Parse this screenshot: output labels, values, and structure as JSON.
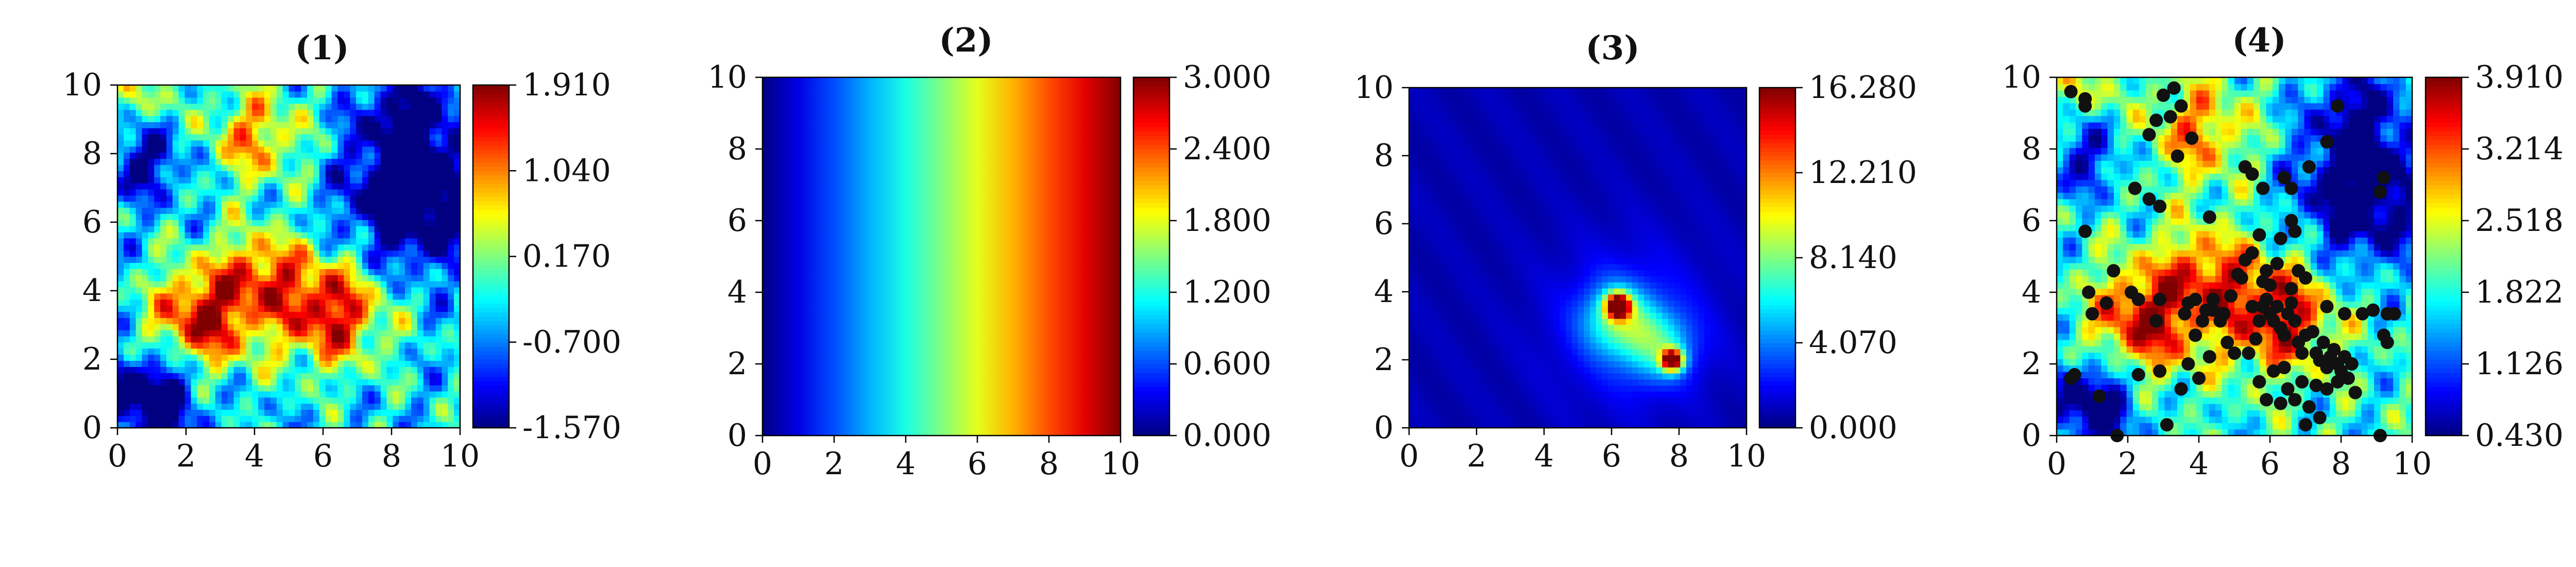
{
  "figure": {
    "panels": [
      {
        "title": "(1)"
      },
      {
        "title": "(2)"
      },
      {
        "title": "(3)"
      },
      {
        "title": "(4)"
      }
    ]
  },
  "chart_data": [
    {
      "type": "heatmap",
      "title": "(1)",
      "xlabel": "",
      "ylabel": "",
      "xlim": [
        0,
        10
      ],
      "ylim": [
        0,
        10
      ],
      "xticks": [
        "0",
        "2",
        "4",
        "6",
        "8",
        "10"
      ],
      "yticks": [
        "0",
        "2",
        "4",
        "6",
        "8",
        "10"
      ],
      "colormap": "jet",
      "colorbar": {
        "ticks": [
          "1.910",
          "1.040",
          "0.170",
          "-0.700",
          "-1.570"
        ],
        "min": -1.57,
        "max": 1.91
      },
      "field": "random Gaussian field with high values centered near (2.5, 3.2) and (6.2, 3.5), moderate ridge near (4, 8.5), low values near (1, 1) and (8.5, 6.5)"
    },
    {
      "type": "heatmap",
      "title": "(2)",
      "xlabel": "",
      "ylabel": "",
      "xlim": [
        0,
        10
      ],
      "ylim": [
        0,
        10
      ],
      "xticks": [
        "0",
        "2",
        "4",
        "6",
        "8",
        "10"
      ],
      "yticks": [
        "0",
        "2",
        "4",
        "6",
        "8",
        "10"
      ],
      "colormap": "jet",
      "colorbar": {
        "ticks": [
          "3.000",
          "2.400",
          "1.800",
          "1.200",
          "0.600",
          "0.000"
        ],
        "min": 0,
        "max": 3
      },
      "field": "linear gradient in x, value = 0.3 * x"
    },
    {
      "type": "heatmap",
      "title": "(3)",
      "xlabel": "",
      "ylabel": "",
      "xlim": [
        0,
        10
      ],
      "ylim": [
        0,
        10
      ],
      "xticks": [
        "0",
        "2",
        "4",
        "6",
        "8",
        "10"
      ],
      "yticks": [
        "0",
        "2",
        "4",
        "6",
        "8",
        "10"
      ],
      "colormap": "jet",
      "colorbar": {
        "ticks": [
          "16.280",
          "12.210",
          "8.140",
          "4.070",
          "0.000"
        ],
        "min": 0,
        "max": 16.28
      },
      "field": "near-zero background with peaks at (6.2, 3.6) and (7.8, 2.0)"
    },
    {
      "type": "heatmap",
      "title": "(4)",
      "xlabel": "",
      "ylabel": "",
      "xlim": [
        0,
        10
      ],
      "ylim": [
        0,
        10
      ],
      "xticks": [
        "0",
        "2",
        "4",
        "6",
        "8",
        "10"
      ],
      "yticks": [
        "0",
        "2",
        "4",
        "6",
        "8",
        "10"
      ],
      "colormap": "jet",
      "colorbar": {
        "ticks": [
          "3.910",
          "3.214",
          "2.518",
          "1.822",
          "1.126",
          "0.430"
        ],
        "min": 0.43,
        "max": 3.91
      },
      "field": "same random field as panel (1) shifted and overlaid with sampled points",
      "points": [
        [
          0.4,
          9.6
        ],
        [
          0.8,
          9.2
        ],
        [
          0.8,
          9.4
        ],
        [
          3.0,
          9.5
        ],
        [
          3.3,
          9.7
        ],
        [
          3.5,
          9.2
        ],
        [
          2.8,
          8.8
        ],
        [
          3.2,
          8.9
        ],
        [
          2.6,
          8.4
        ],
        [
          3.8,
          8.3
        ],
        [
          3.4,
          7.8
        ],
        [
          5.3,
          7.5
        ],
        [
          5.5,
          7.3
        ],
        [
          5.8,
          6.9
        ],
        [
          6.4,
          7.2
        ],
        [
          6.6,
          6.9
        ],
        [
          7.1,
          7.5
        ],
        [
          7.6,
          8.2
        ],
        [
          7.9,
          9.2
        ],
        [
          9.2,
          7.2
        ],
        [
          9.1,
          6.8
        ],
        [
          2.2,
          6.9
        ],
        [
          2.6,
          6.6
        ],
        [
          2.9,
          6.4
        ],
        [
          4.3,
          6.1
        ],
        [
          0.8,
          5.7
        ],
        [
          0.9,
          4.0
        ],
        [
          1.0,
          3.4
        ],
        [
          0.4,
          1.6
        ],
        [
          0.5,
          1.7
        ],
        [
          1.2,
          1.1
        ],
        [
          1.7,
          0.0
        ],
        [
          1.4,
          3.7
        ],
        [
          1.6,
          4.6
        ],
        [
          2.1,
          4.0
        ],
        [
          2.3,
          3.8
        ],
        [
          2.9,
          3.8
        ],
        [
          2.8,
          3.2
        ],
        [
          2.9,
          1.8
        ],
        [
          2.3,
          1.7
        ],
        [
          3.1,
          0.3
        ],
        [
          3.5,
          1.3
        ],
        [
          3.7,
          2.0
        ],
        [
          4.0,
          1.6
        ],
        [
          3.6,
          3.4
        ],
        [
          3.7,
          3.7
        ],
        [
          3.9,
          3.8
        ],
        [
          4.2,
          3.5
        ],
        [
          4.1,
          3.2
        ],
        [
          4.4,
          3.5
        ],
        [
          4.4,
          3.8
        ],
        [
          4.6,
          3.2
        ],
        [
          4.7,
          3.4
        ],
        [
          4.9,
          3.9
        ],
        [
          5.1,
          4.5
        ],
        [
          5.2,
          4.4
        ],
        [
          5.3,
          4.9
        ],
        [
          5.5,
          5.1
        ],
        [
          5.7,
          5.6
        ],
        [
          5.8,
          4.3
        ],
        [
          5.9,
          4.6
        ],
        [
          6.0,
          4.2
        ],
        [
          6.2,
          4.8
        ],
        [
          6.3,
          5.5
        ],
        [
          6.6,
          6.0
        ],
        [
          6.7,
          5.7
        ],
        [
          6.8,
          4.6
        ],
        [
          7.0,
          4.4
        ],
        [
          5.0,
          2.3
        ],
        [
          5.4,
          2.3
        ],
        [
          5.6,
          2.7
        ],
        [
          5.7,
          3.2
        ],
        [
          5.8,
          3.6
        ],
        [
          5.9,
          3.8
        ],
        [
          6.0,
          3.4
        ],
        [
          6.1,
          3.2
        ],
        [
          6.2,
          3.6
        ],
        [
          6.3,
          3.0
        ],
        [
          6.4,
          2.8
        ],
        [
          6.5,
          3.4
        ],
        [
          6.6,
          3.7
        ],
        [
          6.7,
          3.2
        ],
        [
          6.8,
          2.6
        ],
        [
          6.9,
          2.3
        ],
        [
          7.0,
          2.8
        ],
        [
          7.2,
          2.9
        ],
        [
          7.3,
          2.3
        ],
        [
          7.4,
          2.1
        ],
        [
          7.5,
          2.6
        ],
        [
          7.6,
          1.9
        ],
        [
          7.7,
          2.2
        ],
        [
          7.8,
          2.4
        ],
        [
          7.9,
          2.0
        ],
        [
          8.0,
          1.8
        ],
        [
          8.1,
          2.2
        ],
        [
          8.2,
          1.6
        ],
        [
          8.3,
          2.0
        ],
        [
          7.9,
          1.5
        ],
        [
          7.6,
          1.3
        ],
        [
          7.3,
          1.4
        ],
        [
          6.9,
          1.5
        ],
        [
          6.5,
          1.3
        ],
        [
          6.1,
          1.8
        ],
        [
          5.7,
          1.5
        ],
        [
          5.9,
          1.0
        ],
        [
          6.3,
          0.9
        ],
        [
          6.7,
          1.0
        ],
        [
          7.1,
          0.8
        ],
        [
          7.4,
          0.5
        ],
        [
          7.0,
          0.3
        ],
        [
          6.4,
          1.9
        ],
        [
          8.1,
          3.4
        ],
        [
          8.6,
          3.4
        ],
        [
          8.9,
          3.5
        ],
        [
          9.3,
          3.4
        ],
        [
          9.5,
          3.4
        ],
        [
          9.2,
          2.8
        ],
        [
          9.3,
          2.6
        ],
        [
          9.1,
          0.0
        ],
        [
          8.4,
          1.2
        ],
        [
          6.6,
          4.1
        ],
        [
          7.6,
          3.6
        ],
        [
          5.5,
          3.6
        ],
        [
          4.8,
          2.6
        ],
        [
          4.3,
          2.2
        ],
        [
          3.9,
          2.8
        ]
      ]
    }
  ]
}
